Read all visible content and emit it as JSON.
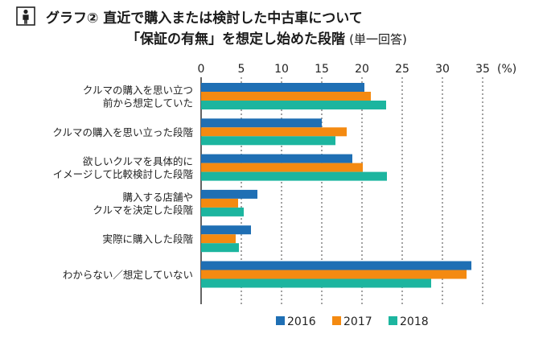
{
  "header": {
    "badge_icon": "person-icon",
    "line1": "グラフ② 直近で購入または検討した中古車について",
    "line2_main": "「保証の有無」を想定し始めた段階",
    "line2_sub": "(単一回答)"
  },
  "chart_data": {
    "type": "bar",
    "orientation": "horizontal",
    "title": "グラフ② 直近で購入または検討した中古車について「保証の有無」を想定し始めた段階(単一回答)",
    "unit_label": "(%)",
    "xlim": [
      0,
      35
    ],
    "xticks": [
      "0",
      "5",
      "10",
      "15",
      "20",
      "25",
      "30",
      "35"
    ],
    "xtick_values": [
      0,
      5,
      10,
      15,
      20,
      25,
      30,
      35
    ],
    "categories": [
      [
        "クルマの購入を思い立つ",
        "前から想定していた"
      ],
      [
        "クルマの購入を思い立った段階"
      ],
      [
        "欲しいクルマを具体的に",
        "イメージして比較検討した段階"
      ],
      [
        "購入する店舗や",
        "クルマを決定した段階"
      ],
      [
        "実際に購入した段階"
      ],
      [
        "わからない／想定していない"
      ]
    ],
    "series": [
      {
        "name": "2016",
        "color": "#1f6fb4",
        "values": [
          20.3,
          15.0,
          18.8,
          7.0,
          6.2,
          33.6
        ]
      },
      {
        "name": "2017",
        "color": "#f48a11",
        "values": [
          21.1,
          18.1,
          20.1,
          4.6,
          4.3,
          33.0
        ]
      },
      {
        "name": "2018",
        "color": "#1cb59f",
        "values": [
          23.0,
          16.7,
          23.1,
          5.3,
          4.7,
          28.6
        ]
      }
    ],
    "legend_position": "bottom"
  }
}
